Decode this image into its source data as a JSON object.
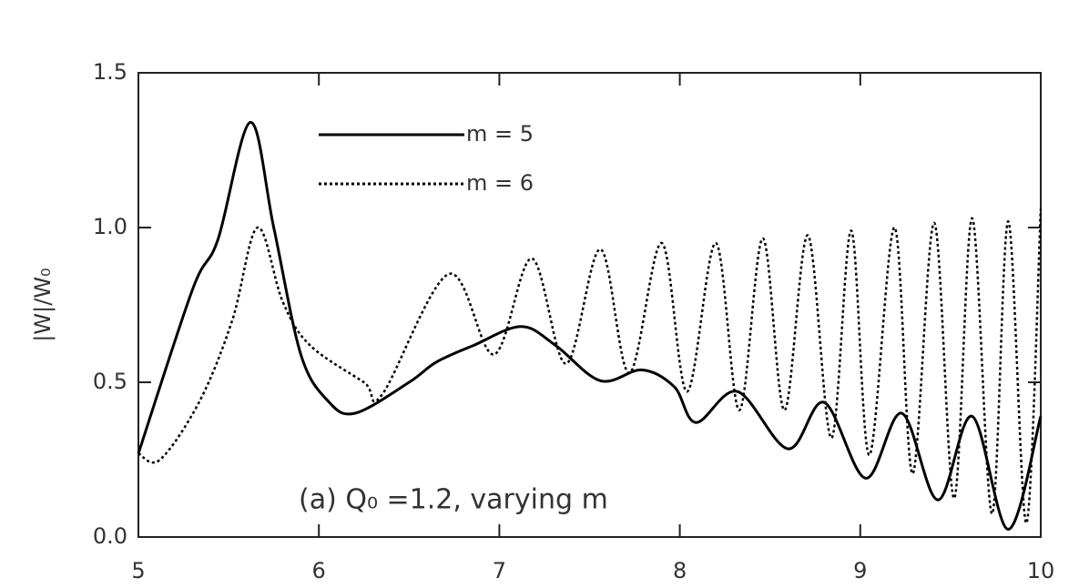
{
  "chart_data": {
    "type": "line",
    "ylabel": "|W|/W₀",
    "annotation": "(a) Q₀ =1.2, varying m",
    "xlim": [
      5,
      10
    ],
    "xticks": [
      5,
      6,
      7,
      8,
      9,
      10
    ],
    "ylim": [
      0,
      1.5
    ],
    "yticks": [
      {
        "value": 0,
        "label": "0.0"
      },
      0.5,
      {
        "value": 1,
        "label": "1.0"
      },
      1.5
    ],
    "legend": "upper left",
    "series": [
      {
        "name": "m = 5",
        "color": "#000000",
        "style": "solid",
        "x": [
          5,
          5.3,
          5.44,
          5.62,
          5.75,
          5.9,
          6.05,
          6.2,
          6.5,
          6.65,
          6.86,
          7.12,
          7.31,
          7.56,
          7.79,
          7.97,
          8.09,
          8.32,
          8.6,
          8.8,
          9.03,
          9.23,
          9.43,
          9.62,
          9.82,
          10
        ],
        "values": [
          0.27,
          0.8,
          0.96,
          1.34,
          1.0,
          0.59,
          0.44,
          0.4,
          0.5,
          0.565,
          0.62,
          0.68,
          0.62,
          0.505,
          0.54,
          0.485,
          0.37,
          0.47,
          0.285,
          0.435,
          0.19,
          0.4,
          0.12,
          0.39,
          0.025,
          0.39
        ]
      },
      {
        "name": "m = 6",
        "color": "#000000",
        "style": "dotted",
        "x": [
          5,
          5.12,
          5.34,
          5.52,
          5.66,
          5.8,
          5.95,
          6.25,
          6.35,
          6.72,
          6.97,
          7.18,
          7.37,
          7.56,
          7.72,
          7.9,
          8.04,
          8.2,
          8.33,
          8.46,
          8.58,
          8.71,
          8.84,
          8.95,
          9.05,
          9.19,
          9.29,
          9.41,
          9.52,
          9.62,
          9.73,
          9.82,
          9.92,
          10
        ],
        "values": [
          0.27,
          0.25,
          0.44,
          0.7,
          1.0,
          0.76,
          0.62,
          0.5,
          0.46,
          0.85,
          0.59,
          0.9,
          0.56,
          0.93,
          0.53,
          0.95,
          0.47,
          0.95,
          0.41,
          0.965,
          0.41,
          0.975,
          0.32,
          0.99,
          0.265,
          1.0,
          0.205,
          1.015,
          0.125,
          1.03,
          0.075,
          1.02,
          0.045,
          1.06
        ]
      }
    ]
  }
}
